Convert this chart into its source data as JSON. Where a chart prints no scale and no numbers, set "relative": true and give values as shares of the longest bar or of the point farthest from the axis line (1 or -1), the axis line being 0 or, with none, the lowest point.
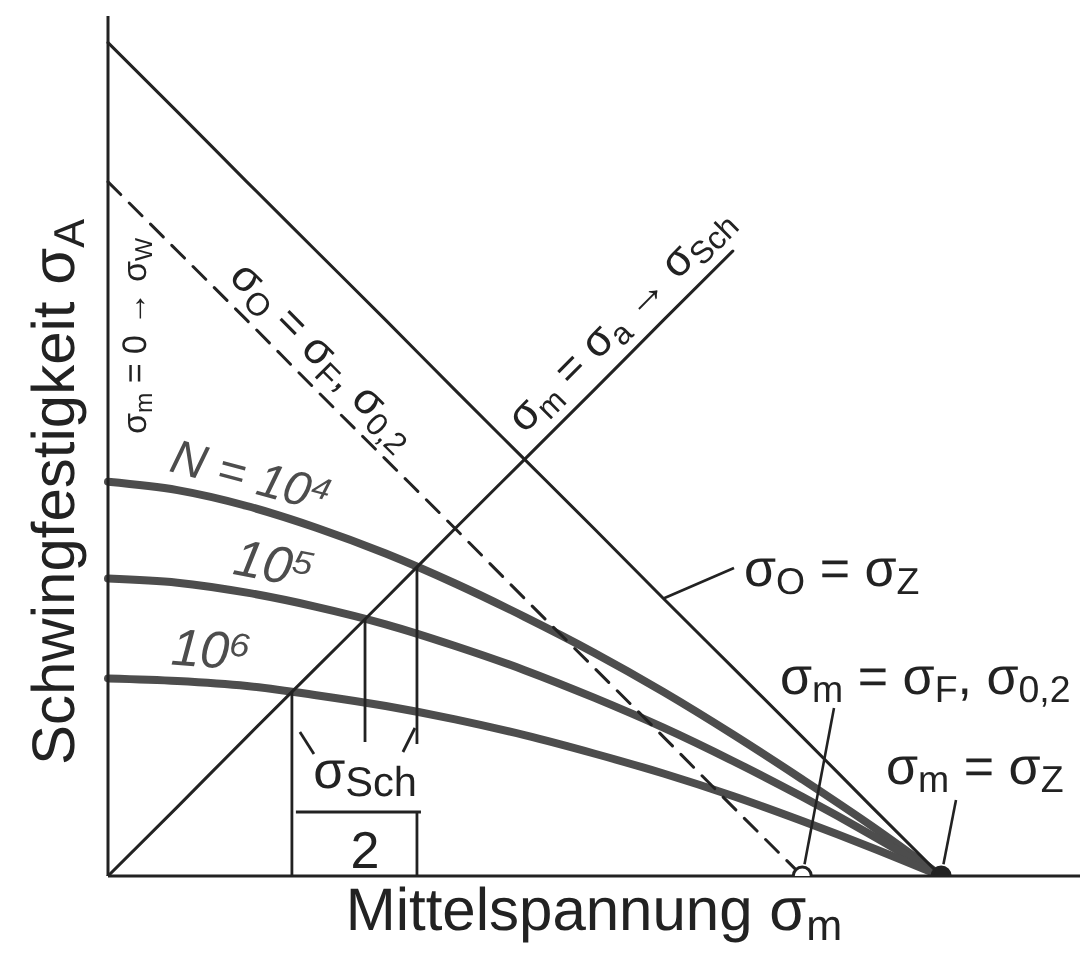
{
  "chart_data": {
    "type": "line",
    "xlabel": "Mittelspannung σ$_{m}$",
    "ylabel": "Schwingfestigkeit σ$_{A}$",
    "relative": true,
    "marker": "none",
    "line_style": "solid",
    "categories": [
      null,
      null,
      null,
      null,
      null,
      null,
      null,
      null,
      null,
      null,
      null,
      null,
      null,
      null,
      null
    ],
    "series": [
      {
        "name": "N = 10⁴",
        "color": "#4d4d4d",
        "values": [
          0.473,
          0.463,
          0.444,
          0.418,
          0.387,
          0.351,
          0.311,
          0.268,
          0.221,
          0.17,
          0.116,
          0.06,
          0,
          null,
          null
        ]
      },
      {
        "name": "10⁵",
        "color": "#4d4d4d",
        "values": [
          0.357,
          0.352,
          0.34,
          0.323,
          0.302,
          0.276,
          0.247,
          0.214,
          0.178,
          0.138,
          0.095,
          0.049,
          0,
          null,
          null
        ]
      },
      {
        "name": "10⁶",
        "color": "#4d4d4d",
        "values": [
          0.237,
          0.234,
          0.228,
          0.217,
          0.204,
          0.188,
          0.169,
          0.147,
          0.123,
          0.096,
          0.066,
          0.034,
          0,
          null,
          null
        ]
      },
      {
        "name": "σ$_{m}$ = σ$_{a}$ → σ$_{Sch}$",
        "color": "#222222",
        "values": [
          0,
          0.083,
          0.167,
          0.25,
          0.333,
          0.417,
          0.5,
          0.583,
          0.667,
          0.75,
          null,
          null,
          null,
          null,
          null
        ]
      },
      {
        "name": "σ$_{O}$ = σ$_{Z}$",
        "color": "#222222",
        "values": [
          1,
          0.917,
          0.833,
          0.75,
          0.667,
          0.583,
          0.5,
          0.417,
          0.333,
          0.25,
          0.167,
          0.083,
          0,
          null,
          null
        ]
      },
      {
        "name": "σ$_{O}$ = σ$_{F}$, σ$_{0,2}$",
        "color": "#222222",
        "line_style": "dashed",
        "values": [
          0.833,
          0.75,
          0.667,
          0.583,
          0.5,
          0.417,
          0.333,
          0.25,
          0.167,
          0.083,
          0,
          null,
          null,
          null,
          null
        ]
      },
      {
        "name": "σ$_{m}$ = σ$_{F}$, σ$_{0,2}$",
        "marker": "circle",
        "color": "#222222",
        "values": [
          null,
          null,
          null,
          null,
          null,
          null,
          null,
          null,
          null,
          null,
          0,
          null,
          null,
          null,
          null
        ]
      },
      {
        "name": "σ$_{m}$ = σ$_{Z}$",
        "marker": "circle",
        "color": "#222222",
        "values": [
          null,
          null,
          null,
          null,
          null,
          null,
          null,
          null,
          null,
          null,
          null,
          null,
          0,
          null,
          null
        ]
      }
    ],
    "annotations": [
      "σ$_{m}$ = 0 → σ$_{W}$",
      "σ$_{Sch}$",
      "2"
    ]
  }
}
